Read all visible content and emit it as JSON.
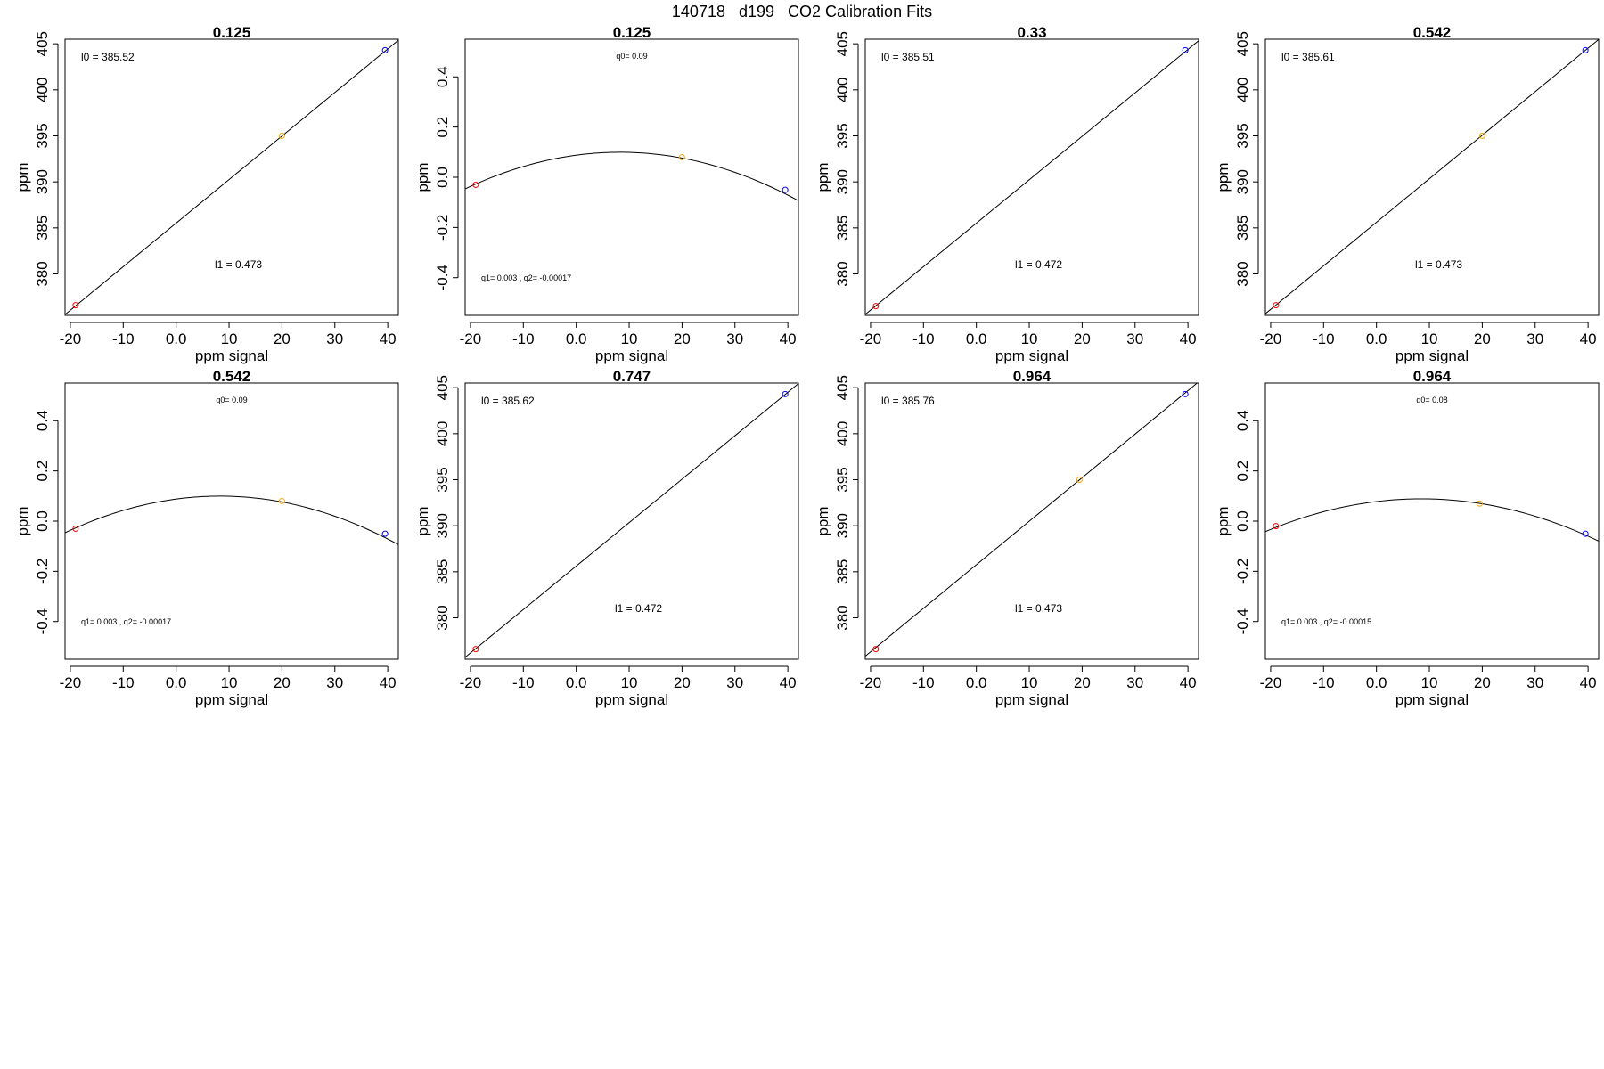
{
  "figure_title": "140718   d199   CO2 Calibration Fits",
  "colors": {
    "low": "#ff0000",
    "mid": "#ffa500",
    "high": "#0000ff",
    "line": "#000000"
  },
  "chart_data": [
    {
      "type": "scatter",
      "fit": "linear",
      "title": "0.125",
      "xlabel": "ppm signal",
      "ylabel": "ppm",
      "xlim": [
        -21,
        42
      ],
      "ylim": [
        375.5,
        405.5
      ],
      "xticks": [
        -20,
        -10,
        0,
        10,
        20,
        30,
        40
      ],
      "yticks": [
        380,
        385,
        390,
        395,
        400,
        405
      ],
      "points": [
        {
          "x": -19,
          "y": 376.6
        },
        {
          "x": 20,
          "y": 395
        },
        {
          "x": 39.5,
          "y": 404.3
        }
      ],
      "coefs": [
        385.52,
        0.473
      ],
      "labels": [
        "l0 =  385.52",
        "l1 =  0.473"
      ]
    },
    {
      "type": "scatter",
      "fit": "quadratic",
      "title": "0.125",
      "xlabel": "ppm signal",
      "ylabel": "ppm",
      "xlim": [
        -21,
        42
      ],
      "ylim": [
        -0.55,
        0.55
      ],
      "xticks": [
        -20,
        -10,
        0,
        10,
        20,
        30,
        40
      ],
      "yticks": [
        -0.4,
        -0.2,
        0.0,
        0.2,
        0.4
      ],
      "points": [
        {
          "x": -19,
          "y": -0.03
        },
        {
          "x": 20,
          "y": 0.08
        },
        {
          "x": 39.5,
          "y": -0.05
        }
      ],
      "coefs": [
        0.088,
        0.00282,
        -0.00017
      ],
      "labels": [
        "q0= 0.09",
        "q1= 0.003 , q2= -0.00017"
      ]
    },
    {
      "type": "scatter",
      "fit": "linear",
      "title": "0.33",
      "xlabel": "ppm signal",
      "ylabel": "ppm",
      "xlim": [
        -21,
        42
      ],
      "ylim": [
        375.5,
        405.5
      ],
      "xticks": [
        -20,
        -10,
        0,
        10,
        20,
        30,
        40
      ],
      "yticks": [
        380,
        385,
        390,
        395,
        400,
        405
      ],
      "points": [
        {
          "x": -19,
          "y": 376.5
        },
        {
          "x": 39.5,
          "y": 404.3
        }
      ],
      "coefs": [
        385.51,
        0.472
      ],
      "labels": [
        "l0 =  385.51",
        "l1 =  0.472"
      ]
    },
    {
      "type": "scatter",
      "fit": "linear",
      "title": "0.542",
      "xlabel": "ppm signal",
      "ylabel": "ppm",
      "xlim": [
        -21,
        42
      ],
      "ylim": [
        375.5,
        405.5
      ],
      "xticks": [
        -20,
        -10,
        0,
        10,
        20,
        30,
        40
      ],
      "yticks": [
        380,
        385,
        390,
        395,
        400,
        405
      ],
      "points": [
        {
          "x": -19,
          "y": 376.6
        },
        {
          "x": 20,
          "y": 395
        },
        {
          "x": 39.5,
          "y": 404.3
        }
      ],
      "coefs": [
        385.61,
        0.473
      ],
      "labels": [
        "l0 =  385.61",
        "l1 =  0.473"
      ]
    },
    {
      "type": "scatter",
      "fit": "quadratic",
      "title": "0.542",
      "xlabel": "ppm signal",
      "ylabel": "ppm",
      "xlim": [
        -21,
        42
      ],
      "ylim": [
        -0.55,
        0.55
      ],
      "xticks": [
        -20,
        -10,
        0,
        10,
        20,
        30,
        40
      ],
      "yticks": [
        -0.4,
        -0.2,
        0.0,
        0.2,
        0.4
      ],
      "points": [
        {
          "x": -19,
          "y": -0.03
        },
        {
          "x": 20,
          "y": 0.08
        },
        {
          "x": 39.5,
          "y": -0.05
        }
      ],
      "coefs": [
        0.088,
        0.00282,
        -0.00017
      ],
      "labels": [
        "q0= 0.09",
        "q1= 0.003 , q2= -0.00017"
      ]
    },
    {
      "type": "scatter",
      "fit": "linear",
      "title": "0.747",
      "xlabel": "ppm signal",
      "ylabel": "ppm",
      "xlim": [
        -21,
        42
      ],
      "ylim": [
        375.5,
        405.5
      ],
      "xticks": [
        -20,
        -10,
        0,
        10,
        20,
        30,
        40
      ],
      "yticks": [
        380,
        385,
        390,
        395,
        400,
        405
      ],
      "points": [
        {
          "x": -19,
          "y": 376.6
        },
        {
          "x": 39.5,
          "y": 404.3
        }
      ],
      "coefs": [
        385.62,
        0.472
      ],
      "labels": [
        "l0 =  385.62",
        "l1 =  0.472"
      ]
    },
    {
      "type": "scatter",
      "fit": "linear",
      "title": "0.964",
      "xlabel": "ppm signal",
      "ylabel": "ppm",
      "xlim": [
        -21,
        42
      ],
      "ylim": [
        375.5,
        405.5
      ],
      "xticks": [
        -20,
        -10,
        0,
        10,
        20,
        30,
        40
      ],
      "yticks": [
        380,
        385,
        390,
        395,
        400,
        405
      ],
      "points": [
        {
          "x": -19,
          "y": 376.6
        },
        {
          "x": 19.5,
          "y": 395
        },
        {
          "x": 39.5,
          "y": 404.3
        }
      ],
      "coefs": [
        385.76,
        0.473
      ],
      "labels": [
        "l0 =  385.76",
        "l1 =  0.473"
      ]
    },
    {
      "type": "scatter",
      "fit": "quadratic",
      "title": "0.964",
      "xlabel": "ppm signal",
      "ylabel": "ppm",
      "xlim": [
        -21,
        42
      ],
      "ylim": [
        -0.55,
        0.55
      ],
      "xticks": [
        -20,
        -10,
        0,
        10,
        20,
        30,
        40
      ],
      "yticks": [
        -0.4,
        -0.2,
        0.0,
        0.2,
        0.4
      ],
      "points": [
        {
          "x": -19,
          "y": -0.02
        },
        {
          "x": 19.5,
          "y": 0.07
        },
        {
          "x": 39.5,
          "y": -0.05
        }
      ],
      "coefs": [
        0.078,
        0.00255,
        -0.00015
      ],
      "labels": [
        "q0= 0.08",
        "q1= 0.003 , q2= -0.00015"
      ]
    }
  ]
}
